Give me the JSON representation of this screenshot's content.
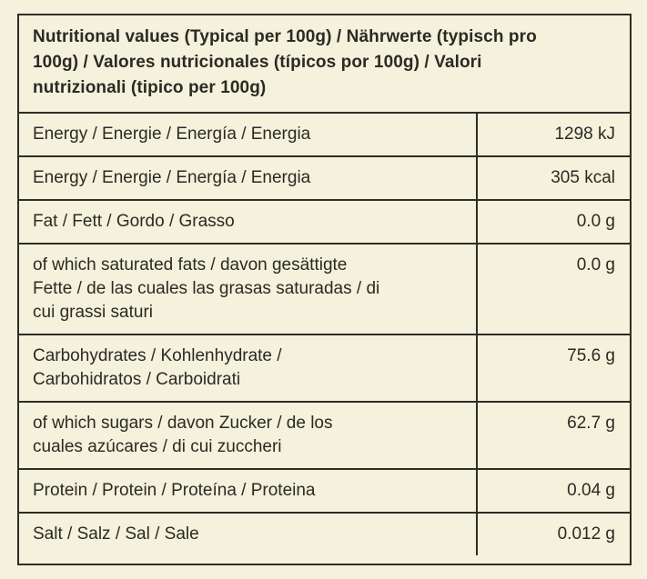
{
  "colors": {
    "background": "#f4f1dc",
    "border": "#2e2d26",
    "text": "#2b2a23"
  },
  "table": {
    "title": "Nutritional values (Typical per 100g) / Nährwerte (typisch pro 100g) / Valores nutricionales (típicos por 100g) / Valori nutrizionali (tipico per 100g)",
    "rows": [
      {
        "label": "Energy / Energie / Energía / Energia",
        "value": "1298 kJ"
      },
      {
        "label": "Energy / Energie / Energía / Energia",
        "value": "305 kcal"
      },
      {
        "label": "Fat / Fett / Gordo / Grasso",
        "value": "0.0 g"
      },
      {
        "label": "of which saturated fats / davon gesättigte Fette / de las cuales las grasas saturadas / di cui grassi saturi",
        "value": "0.0 g"
      },
      {
        "label": "Carbohydrates / Kohlenhydrate / Carbohidratos / Carboidrati",
        "value": "75.6 g"
      },
      {
        "label": "of which sugars / davon Zucker / de los cuales azúcares / di cui zuccheri",
        "value": "62.7 g"
      },
      {
        "label": "Protein / Protein / Proteína / Proteina",
        "value": "0.04 g"
      },
      {
        "label": "Salt / Salz / Sal / Sale",
        "value": "0.012 g"
      }
    ]
  }
}
